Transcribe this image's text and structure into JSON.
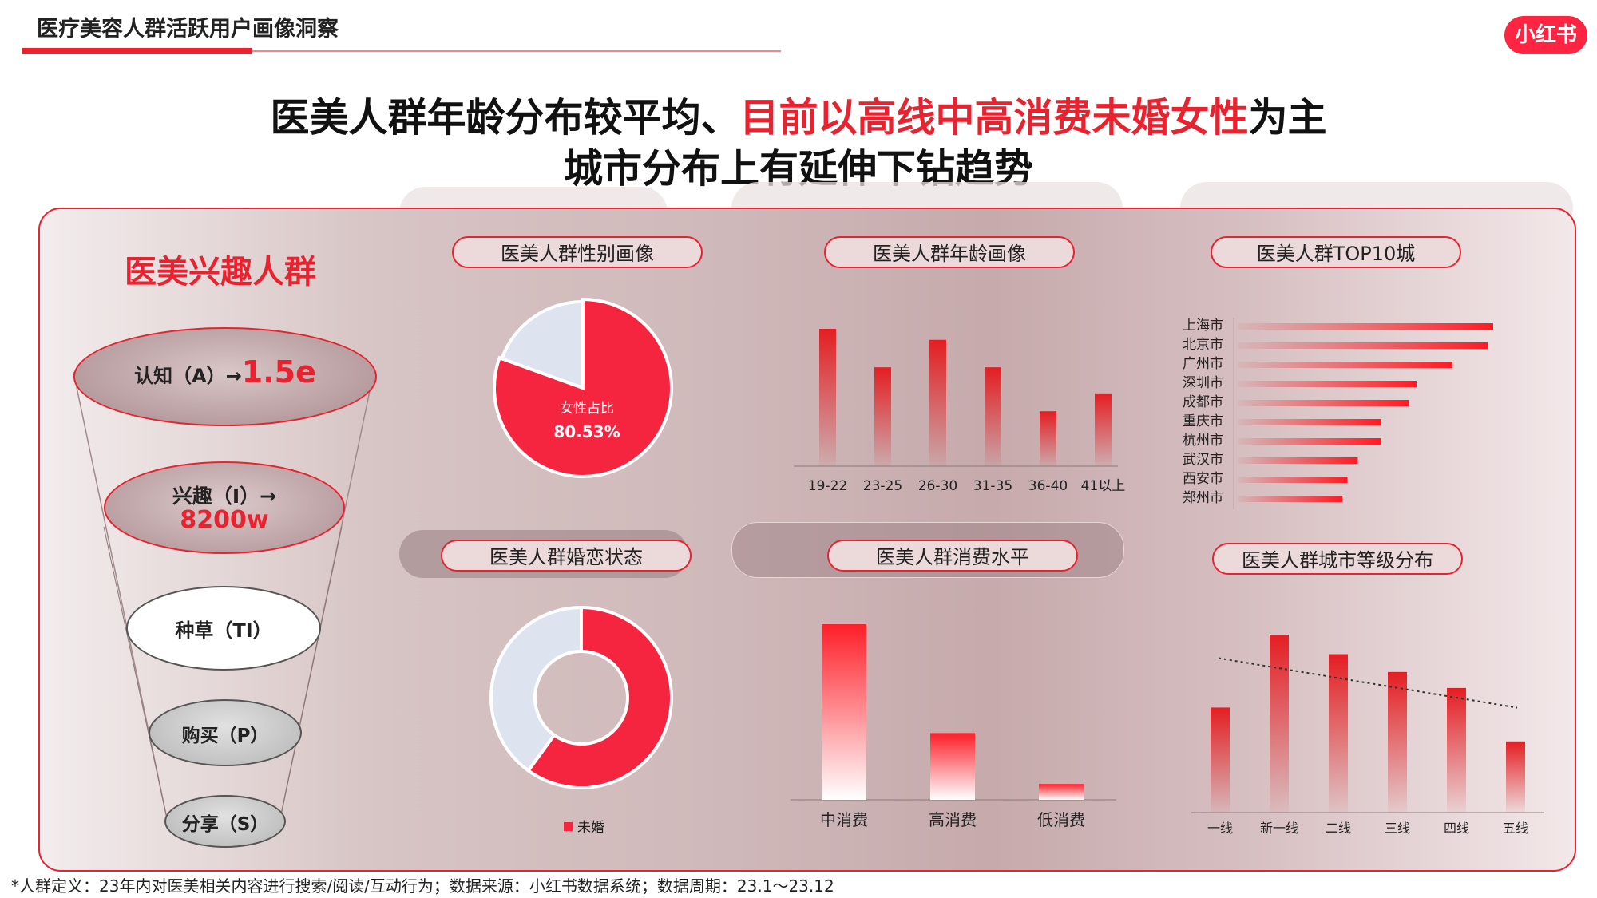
{
  "header": {
    "title": "医疗美容人群活跃用户画像洞察",
    "logo": "小红书"
  },
  "headline": {
    "line1_prefix": "医美人群年龄分布较平均、",
    "line1_red": "目前以高线中高消费未婚女性",
    "line1_suffix": "为主",
    "line2": "城市分布上有延伸下钻趋势"
  },
  "funnel": {
    "title": "医美兴趣人群",
    "stages": [
      {
        "label": "认知（A）→",
        "value": "1.5e"
      },
      {
        "label": "兴趣（I）→",
        "value": "8200w"
      },
      {
        "label": "种草（TI）",
        "value": ""
      },
      {
        "label": "购买（P）",
        "value": ""
      },
      {
        "label": "分享（S）",
        "value": ""
      }
    ]
  },
  "tabs": {
    "gender": "医美人群性别画像",
    "age": "医美人群年龄画像",
    "top10": "医美人群TOP10城",
    "marital": "医美人群婚恋状态",
    "spending": "医美人群消费水平",
    "tier": "医美人群城市等级分布"
  },
  "colors": {
    "accent": "#e8222e",
    "pie_red": "#f5243f",
    "pie_light": "#dde3ef"
  },
  "chart_data": [
    {
      "id": "gender",
      "type": "pie",
      "slices": [
        {
          "name": "女性占比",
          "value": 80.53
        },
        {
          "name": "",
          "value": 19.47
        }
      ],
      "label": "女性占比",
      "value_label": "80.53%"
    },
    {
      "id": "age",
      "type": "bar",
      "categories": [
        "19-22",
        "23-25",
        "26-30",
        "31-35",
        "36-40",
        "41以上"
      ],
      "values": [
        100,
        72,
        92,
        72,
        40,
        53
      ],
      "ylim": [
        0,
        100
      ]
    },
    {
      "id": "top10",
      "type": "bar",
      "orientation": "horizontal",
      "categories": [
        "上海市",
        "北京市",
        "广州市",
        "深圳市",
        "成都市",
        "重庆市",
        "杭州市",
        "武汉市",
        "西安市",
        "郑州市"
      ],
      "values": [
        100,
        98,
        84,
        70,
        67,
        56,
        56,
        47,
        43,
        41
      ],
      "xlim": [
        0,
        100
      ]
    },
    {
      "id": "marital",
      "type": "pie",
      "donut": true,
      "slices": [
        {
          "name": "未婚",
          "value": 60
        },
        {
          "name": "",
          "value": 40
        }
      ],
      "legend": [
        "未婚"
      ]
    },
    {
      "id": "spending",
      "type": "bar",
      "categories": [
        "中消费",
        "高消费",
        "低消费"
      ],
      "values": [
        100,
        38,
        9
      ],
      "ylim": [
        0,
        100
      ]
    },
    {
      "id": "tier",
      "type": "bar",
      "categories": [
        "一线",
        "新一线",
        "二线",
        "三线",
        "四线",
        "五线"
      ],
      "values": [
        59,
        100,
        89,
        79,
        70,
        40
      ],
      "trendline": true,
      "ylim": [
        0,
        100
      ]
    }
  ],
  "footer": "*人群定义：23年内对医美相关内容进行搜索/阅读/互动行为；数据来源：小红书数据系统；数据周期：23.1～23.12"
}
